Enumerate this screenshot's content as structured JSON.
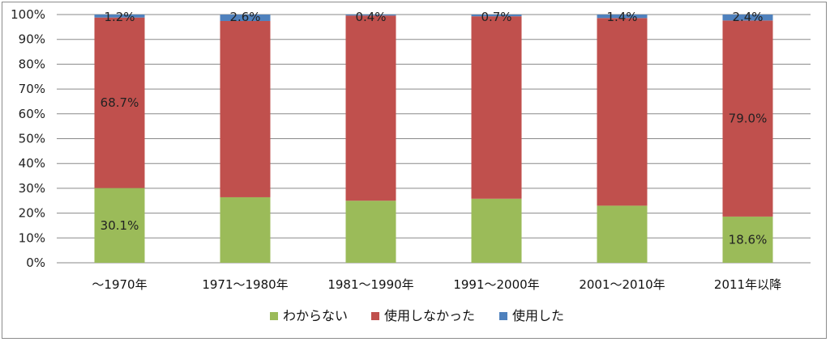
{
  "chart_data": {
    "type": "bar",
    "stacked": true,
    "categories": [
      "～1970年",
      "1971～1980年",
      "1981～1990年",
      "1991～2000年",
      "2001～2010年",
      "2011年以降"
    ],
    "series": [
      {
        "name": "わからない",
        "color": "#9bbb59",
        "values": [
          30.1,
          26.4,
          25.0,
          25.8,
          23.0,
          18.6
        ]
      },
      {
        "name": "使用しなかった",
        "color": "#c0504d",
        "values": [
          68.7,
          71.0,
          74.6,
          73.5,
          75.6,
          79.0
        ]
      },
      {
        "name": "使用した",
        "color": "#4f81bd",
        "values": [
          1.2,
          2.6,
          0.4,
          0.7,
          1.4,
          2.4
        ]
      }
    ],
    "data_labels": [
      {
        "category": 0,
        "series": 0,
        "text": "30.1%"
      },
      {
        "category": 0,
        "series": 1,
        "text": "68.7%"
      },
      {
        "category": 0,
        "series": 2,
        "text": "1.2%"
      },
      {
        "category": 1,
        "series": 2,
        "text": "2.6%"
      },
      {
        "category": 2,
        "series": 2,
        "text": "0.4%"
      },
      {
        "category": 3,
        "series": 2,
        "text": "0.7%"
      },
      {
        "category": 4,
        "series": 2,
        "text": "1.4%"
      },
      {
        "category": 5,
        "series": 0,
        "text": "18.6%"
      },
      {
        "category": 5,
        "series": 1,
        "text": "79.0%"
      },
      {
        "category": 5,
        "series": 2,
        "text": "2.4%"
      }
    ],
    "yticks": [
      "0%",
      "10%",
      "20%",
      "30%",
      "40%",
      "50%",
      "60%",
      "70%",
      "80%",
      "90%",
      "100%"
    ],
    "ylim": [
      0,
      100
    ],
    "grid": true,
    "legend_position": "bottom",
    "title": "",
    "xlabel": "",
    "ylabel": ""
  }
}
